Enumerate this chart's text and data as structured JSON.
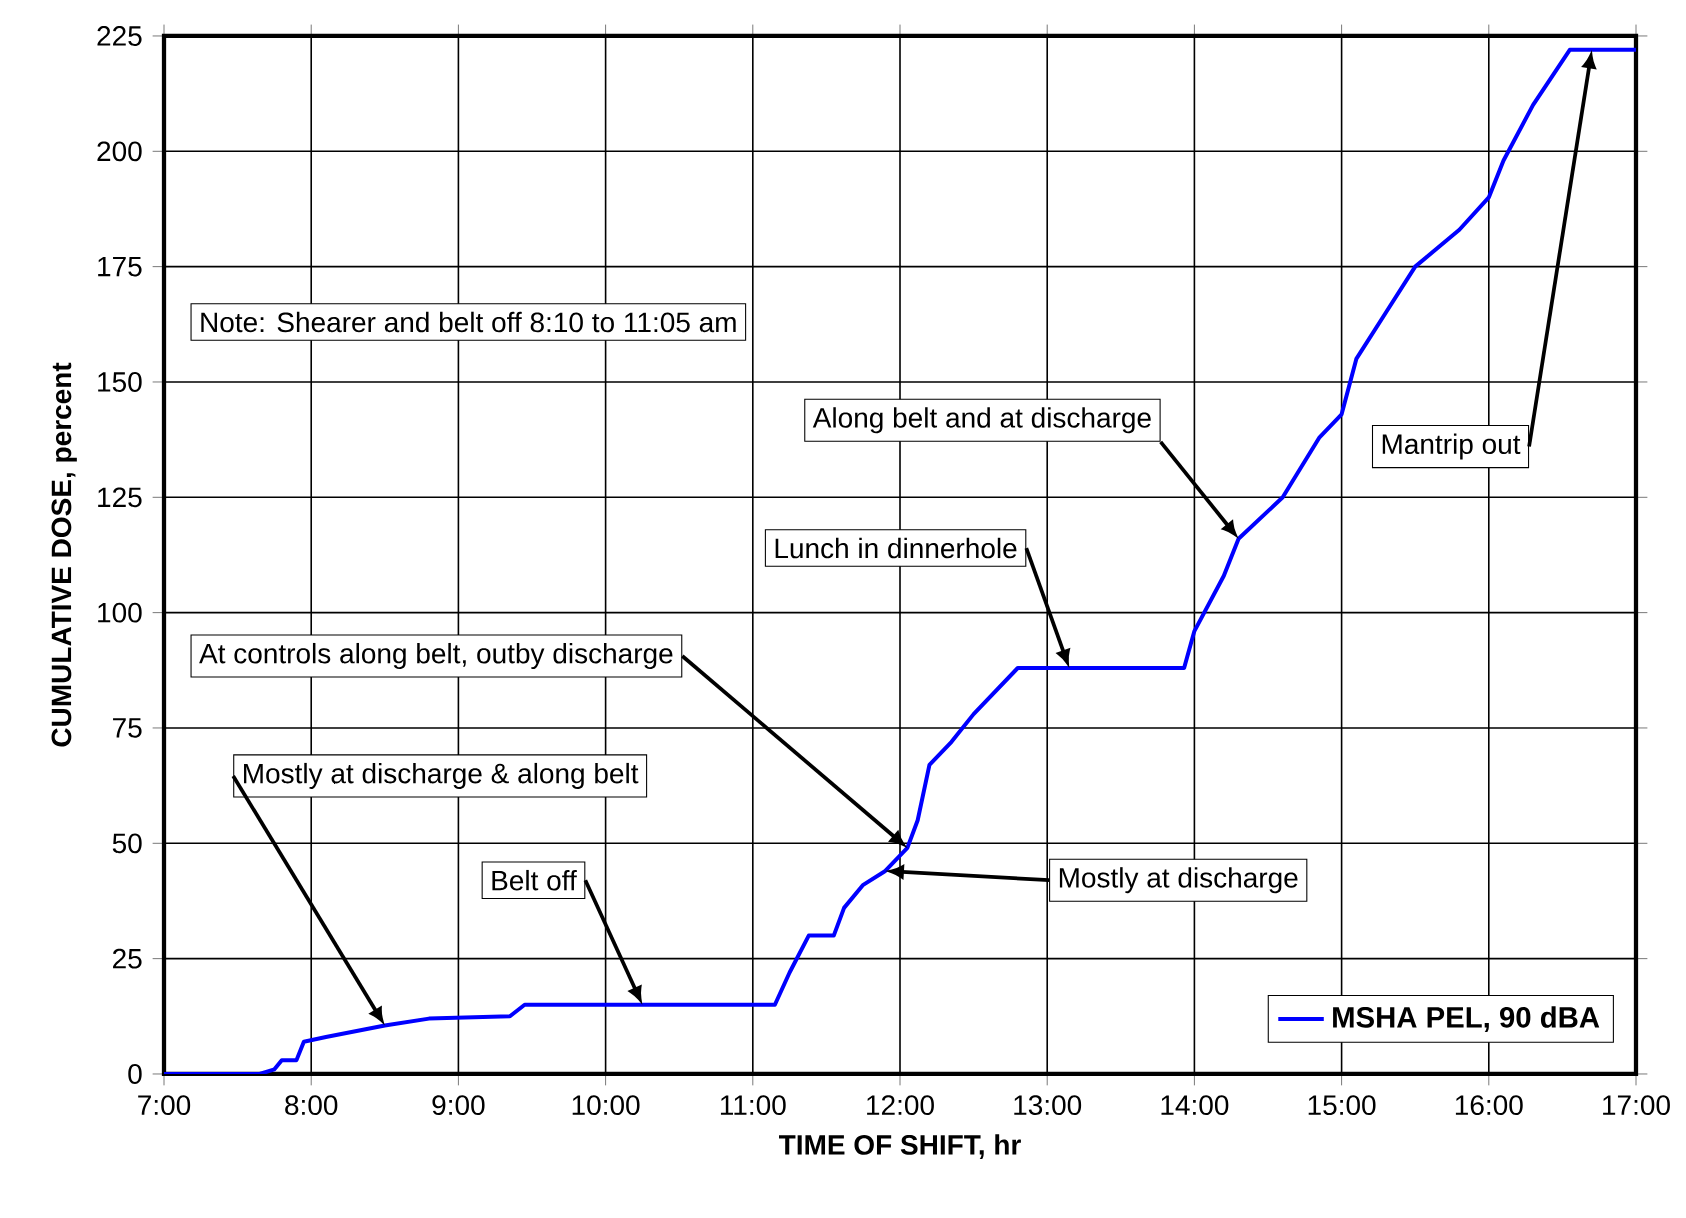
{
  "chart_data": {
    "type": "line",
    "xlabel": "TIME OF SHIFT, hr",
    "ylabel": "CUMULATIVE DOSE, percent",
    "xlim": [
      7,
      17
    ],
    "ylim": [
      0,
      225
    ],
    "xticks": [
      {
        "value": 7,
        "label": "7:00"
      },
      {
        "value": 8,
        "label": "8:00"
      },
      {
        "value": 9,
        "label": "9:00"
      },
      {
        "value": 10,
        "label": "10:00"
      },
      {
        "value": 11,
        "label": "11:00"
      },
      {
        "value": 12,
        "label": "12:00"
      },
      {
        "value": 13,
        "label": "13:00"
      },
      {
        "value": 14,
        "label": "14:00"
      },
      {
        "value": 15,
        "label": "15:00"
      },
      {
        "value": 16,
        "label": "16:00"
      },
      {
        "value": 17,
        "label": "17:00"
      }
    ],
    "yticks": [
      0,
      25,
      50,
      75,
      100,
      125,
      150,
      175,
      200,
      225
    ],
    "grid": true,
    "legend": "bottom right",
    "marker": "none",
    "line_style": "solid",
    "series": [
      {
        "name": "MSHA PEL, 90 dBA",
        "color": "#0000ff",
        "x": [
          7.0,
          7.65,
          7.75,
          7.8,
          7.9,
          7.95,
          8.1,
          8.5,
          8.8,
          9.35,
          9.45,
          11.15,
          11.25,
          11.38,
          11.55,
          11.62,
          11.75,
          11.9,
          12.05,
          12.12,
          12.2,
          12.35,
          12.5,
          12.8,
          13.93,
          14.0,
          14.2,
          14.3,
          14.6,
          14.85,
          15.0,
          15.1,
          15.3,
          15.5,
          15.8,
          16.0,
          16.1,
          16.3,
          16.55,
          17.0
        ],
        "values": [
          0,
          0,
          1,
          3,
          3,
          7,
          8,
          10.5,
          12,
          12.5,
          15,
          15,
          22,
          30,
          30,
          36,
          41,
          44,
          49,
          55,
          67,
          72,
          78,
          88,
          88,
          96,
          108,
          116,
          125,
          138,
          143,
          155,
          165,
          175,
          183,
          190,
          198,
          210,
          222,
          222
        ]
      }
    ],
    "annotations": [
      "Note: Shearer and belt off 8:10 to 11:05  am",
      {
        "text": "Mostly at discharge & along belt",
        "x": 8.5,
        "y": 10.5
      },
      {
        "text": "Belt off",
        "x": 10.25,
        "y": 15
      },
      {
        "text": "At controls along belt, outby discharge",
        "x": 12.05,
        "y": 49
      },
      {
        "text": "Lunch in dinnerhole",
        "x": 13.15,
        "y": 88
      },
      {
        "text": "Mostly at discharge",
        "x": 11.9,
        "y": 44
      },
      {
        "text": "Along belt and at discharge",
        "x": 14.3,
        "y": 116
      },
      {
        "text": "Mantrip out",
        "x": 16.7,
        "y": 222
      }
    ]
  }
}
